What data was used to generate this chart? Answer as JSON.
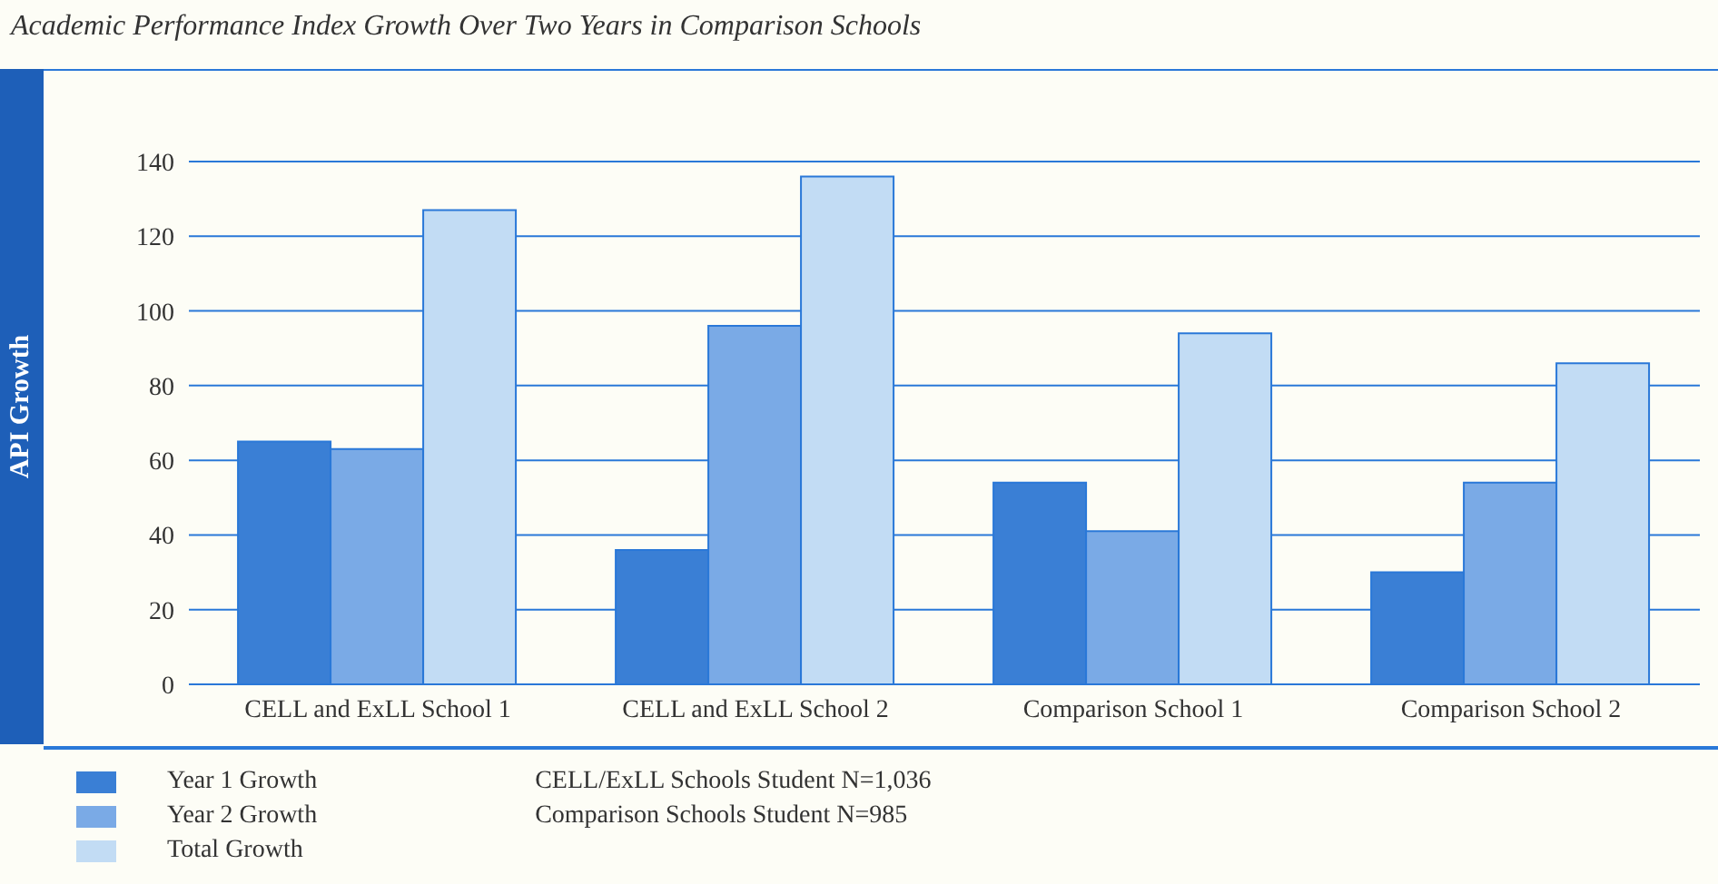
{
  "chart_data": {
    "type": "bar",
    "title": "Academic Performance Index Growth Over Two Years in Comparison Schools",
    "ylabel": "API Growth",
    "categories": [
      "CELL and ExLL School 1",
      "CELL and ExLL School 2",
      "Comparison School 1",
      "Comparison School 2"
    ],
    "series": [
      {
        "name": "Year 1 Growth",
        "color": "#3a7fd5",
        "values": [
          65,
          36,
          54,
          30
        ]
      },
      {
        "name": "Year 2 Growth",
        "color": "#7aaae6",
        "values": [
          63,
          96,
          41,
          54
        ]
      },
      {
        "name": "Total Growth",
        "color": "#c2dcf4",
        "values": [
          127,
          136,
          94,
          86
        ]
      }
    ],
    "ylim": [
      0,
      140
    ],
    "yticks": [
      0,
      20,
      40,
      60,
      80,
      100,
      120,
      140
    ],
    "grid": "y",
    "legend": "bottom left",
    "annotations": [
      "CELL/ExLL Schools Student N=1,036",
      "Comparison Schools Student N=985"
    ]
  }
}
